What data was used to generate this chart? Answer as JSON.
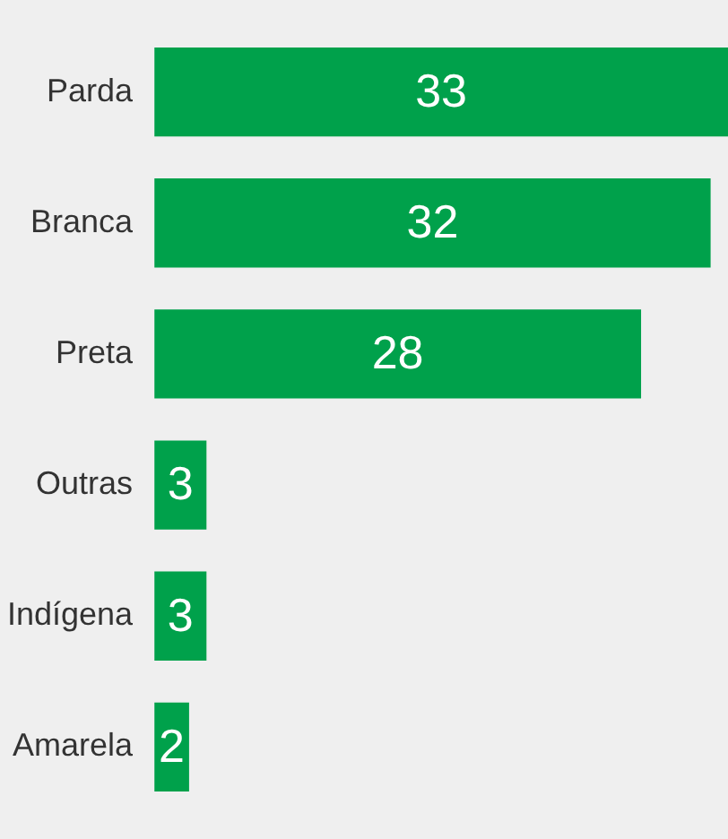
{
  "chart_data": {
    "type": "bar",
    "orientation": "horizontal",
    "categories": [
      "Parda",
      "Branca",
      "Preta",
      "Outras",
      "Indígena",
      "Amarela"
    ],
    "values": [
      33,
      32,
      28,
      3,
      3,
      2
    ],
    "color": "#00a14b",
    "data_labels": true,
    "grid": false,
    "legend": false
  }
}
